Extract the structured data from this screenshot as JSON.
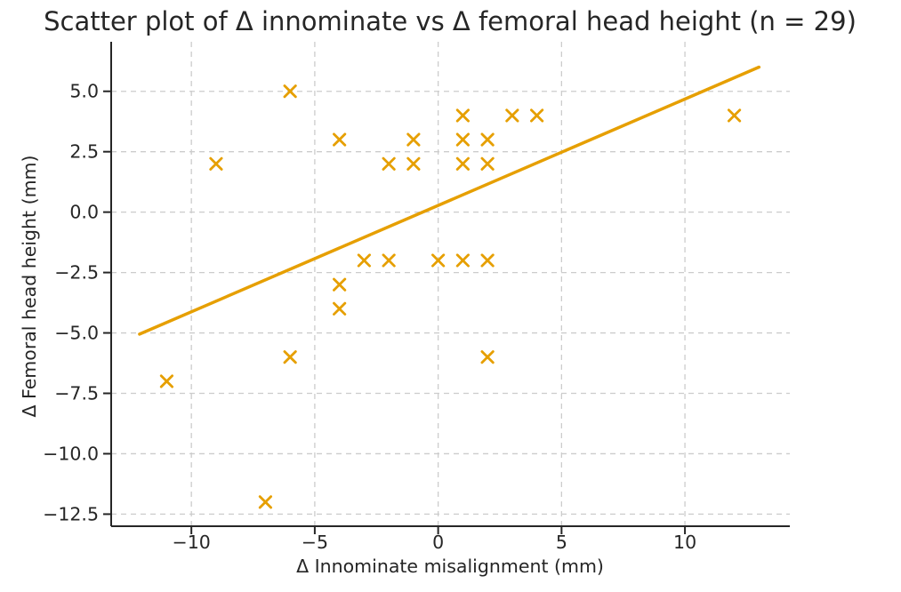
{
  "chart_data": {
    "type": "scatter",
    "title": "Scatter plot of Δ innominate vs Δ femoral head height (n = 29)",
    "xlabel": "Δ Innominate misalignment (mm)",
    "ylabel": "Δ Femoral head height (mm)",
    "marker": "x",
    "marker_color": "#E69F00",
    "trend_color": "#E69F00",
    "grid": true,
    "grid_color": "#cccccc",
    "axis_color": "#262626",
    "text_color": "#262626",
    "xlim": [
      -13.25,
      14.25
    ],
    "ylim": [
      -13.0,
      7.05
    ],
    "x_ticks": [
      -10,
      -5,
      0,
      5,
      10
    ],
    "x_tick_labels": [
      "−10",
      "−5",
      "0",
      "5",
      "10"
    ],
    "y_ticks": [
      5.0,
      2.5,
      0.0,
      -2.5,
      -5.0,
      -7.5,
      -10.0,
      -12.5
    ],
    "y_tick_labels": [
      "5.0",
      "2.5",
      "0.0",
      "−2.5",
      "−5.0",
      "−7.5",
      "−10.0",
      "−12.5"
    ],
    "points": [
      [
        -11,
        -7
      ],
      [
        -9,
        2
      ],
      [
        -7,
        -12
      ],
      [
        -6,
        5
      ],
      [
        -6,
        -6
      ],
      [
        -4,
        3
      ],
      [
        -4,
        -3
      ],
      [
        -4,
        -4
      ],
      [
        -3,
        -2
      ],
      [
        -2,
        2
      ],
      [
        -2,
        -2
      ],
      [
        -1,
        3
      ],
      [
        -1,
        2
      ],
      [
        0,
        -2
      ],
      [
        1,
        4
      ],
      [
        1,
        3
      ],
      [
        1,
        2
      ],
      [
        1,
        -2
      ],
      [
        2,
        3
      ],
      [
        2,
        2
      ],
      [
        2,
        -2
      ],
      [
        2,
        -6
      ],
      [
        3,
        4
      ],
      [
        4,
        4
      ],
      [
        12,
        4
      ]
    ],
    "visible_point_count": 25,
    "trend_line": {
      "x1": -12.1,
      "y1": -5.05,
      "x2": 13.0,
      "y2": 6.0
    },
    "legend": "none"
  }
}
